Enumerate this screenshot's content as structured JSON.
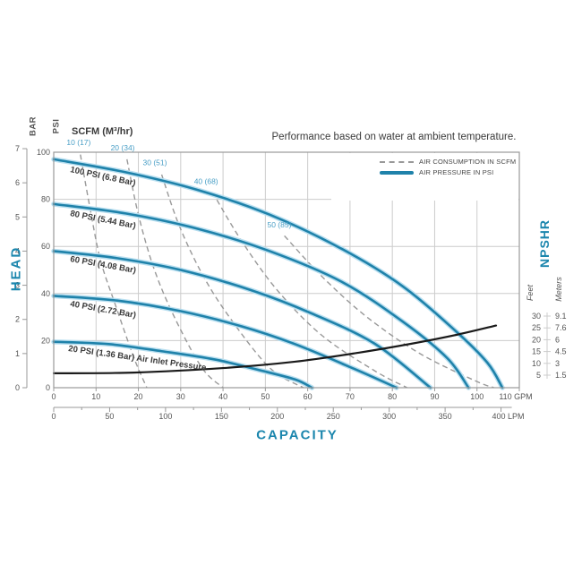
{
  "title": "Performance based on water at ambient temperature.",
  "scfm_header": "SCFM (M³/hr)",
  "axis_labels": {
    "bar": "BAR",
    "psi": "PSI",
    "head": "HEAD",
    "capacity": "CAPACITY",
    "npshr": "NPSHR",
    "feet": "Feet",
    "meters": "Meters"
  },
  "legend": [
    {
      "type": "dashed",
      "label": "AIR CONSUMPTION IN SCFM"
    },
    {
      "type": "solid",
      "label": "AIR PRESSURE IN PSI"
    }
  ],
  "colors": {
    "curve_blue": "#1f82aa",
    "curve_halo": "#b9dff0",
    "label_blue": "#1b86ad",
    "scfm_label_blue": "#4a9fc6",
    "dashed_gray": "#999999",
    "npshr_black": "#1a1a1a",
    "grid": "#cccccc",
    "border": "#999999",
    "text_dark": "#3a3a3a"
  },
  "chart_data": {
    "type": "line",
    "x_axes": {
      "gpm": {
        "min": 0,
        "max": 110,
        "tick_step": 10,
        "unit": "GPM",
        "tick_labels": [
          "0",
          "10",
          "20",
          "30",
          "40",
          "50",
          "60",
          "70",
          "80",
          "90",
          "100",
          "110 GPM"
        ]
      },
      "lpm": {
        "min": 0,
        "max": 400,
        "tick_step": 50,
        "minor_step": 25,
        "unit": "LPM",
        "tick_labels": [
          "0",
          "50",
          "100",
          "150",
          "200",
          "250",
          "300",
          "350",
          "400 LPM"
        ]
      }
    },
    "y_axes": {
      "psi": {
        "min": 0,
        "max": 100,
        "tick_step": 20,
        "tick_labels": [
          "0",
          "20",
          "40",
          "60",
          "80",
          "100"
        ]
      },
      "bar": {
        "min": 0,
        "max": 7,
        "tick_step": 1,
        "tick_labels": [
          "0",
          "1",
          "2",
          "3",
          "4",
          "5",
          "6",
          "7"
        ]
      },
      "npshr": {
        "feet": [
          "30",
          "25",
          "20",
          "15",
          "10",
          "5"
        ],
        "meters": [
          "9.1",
          "7.6",
          "6",
          "4.5",
          "3",
          "1.5"
        ]
      }
    },
    "pressure_curves": [
      {
        "id": "p100",
        "label": "100 PSI (6.8 Bar)",
        "points": [
          [
            0,
            97
          ],
          [
            17,
            91.5
          ],
          [
            34,
            84
          ],
          [
            51,
            73.5
          ],
          [
            68,
            59
          ],
          [
            82.5,
            43
          ],
          [
            95,
            24
          ],
          [
            102.5,
            10.5
          ],
          [
            106,
            0
          ]
        ]
      },
      {
        "id": "p80",
        "label": "80 PSI (5.44 Bar)",
        "points": [
          [
            0,
            78
          ],
          [
            17,
            74
          ],
          [
            34,
            67.5
          ],
          [
            51,
            58
          ],
          [
            68,
            45
          ],
          [
            82.5,
            28
          ],
          [
            93,
            12.5
          ],
          [
            98,
            0
          ]
        ]
      },
      {
        "id": "p60",
        "label": "60 PSI (4.08 Bar)",
        "points": [
          [
            0,
            58
          ],
          [
            15,
            55
          ],
          [
            30,
            50
          ],
          [
            46.5,
            41.5
          ],
          [
            61,
            31.5
          ],
          [
            76,
            18.5
          ],
          [
            89,
            0
          ]
        ]
      },
      {
        "id": "p40",
        "label": "40 PSI (2.72 Bar)",
        "points": [
          [
            0,
            39
          ],
          [
            15,
            37
          ],
          [
            30,
            32.5
          ],
          [
            44.5,
            26
          ],
          [
            57,
            18.5
          ],
          [
            71,
            8
          ],
          [
            81,
            0
          ]
        ]
      },
      {
        "id": "p20",
        "label": "20 PSI (1.36 Bar) Air Inlet Pressure",
        "points": [
          [
            0,
            19.5
          ],
          [
            13,
            18.5
          ],
          [
            25.5,
            15.5
          ],
          [
            38,
            12
          ],
          [
            48.5,
            7.5
          ],
          [
            57,
            3.5
          ],
          [
            61,
            0
          ]
        ]
      }
    ],
    "air_consumption_curves": [
      {
        "id": "s10",
        "label": "10 (17)",
        "label_at": [
          5.9,
          103
        ],
        "points": [
          [
            6.3,
            99
          ],
          [
            8.5,
            77
          ],
          [
            11,
            54.5
          ],
          [
            14.5,
            35.5
          ],
          [
            19,
            12.5
          ],
          [
            22,
            0
          ]
        ]
      },
      {
        "id": "s20",
        "label": "20 (34)",
        "label_at": [
          16.3,
          100.7
        ],
        "points": [
          [
            17.3,
            97
          ],
          [
            20,
            73.5
          ],
          [
            23.7,
            50.5
          ],
          [
            28.5,
            30
          ],
          [
            35,
            8.5
          ],
          [
            40,
            0
          ]
        ]
      },
      {
        "id": "s30",
        "label": "30 (51)",
        "label_at": [
          23.9,
          94.5
        ],
        "points": [
          [
            25.5,
            90.5
          ],
          [
            29.5,
            69.5
          ],
          [
            35,
            48.5
          ],
          [
            41.5,
            30
          ],
          [
            51,
            8.5
          ],
          [
            59,
            0
          ]
        ]
      },
      {
        "id": "s40",
        "label": "40 (68)",
        "label_at": [
          36,
          86.5
        ],
        "points": [
          [
            37.5,
            83
          ],
          [
            44.5,
            62
          ],
          [
            53,
            41
          ],
          [
            63.5,
            22
          ],
          [
            76,
            7
          ],
          [
            83.5,
            0
          ]
        ]
      },
      {
        "id": "s50",
        "label": "50 (85)",
        "label_at": [
          53.3,
          68
        ],
        "points": [
          [
            54.5,
            64.5
          ],
          [
            63.5,
            47
          ],
          [
            74,
            30
          ],
          [
            86.5,
            14.5
          ],
          [
            99.5,
            3
          ],
          [
            104,
            0
          ]
        ]
      }
    ],
    "npshr_curve": {
      "points_gpm_feet": [
        [
          0,
          5.8
        ],
        [
          19,
          6.1
        ],
        [
          40,
          8
        ],
        [
          57,
          10.7
        ],
        [
          72,
          14.5
        ],
        [
          84.5,
          18.3
        ],
        [
          95,
          22
        ],
        [
          104.5,
          26
        ]
      ]
    }
  }
}
